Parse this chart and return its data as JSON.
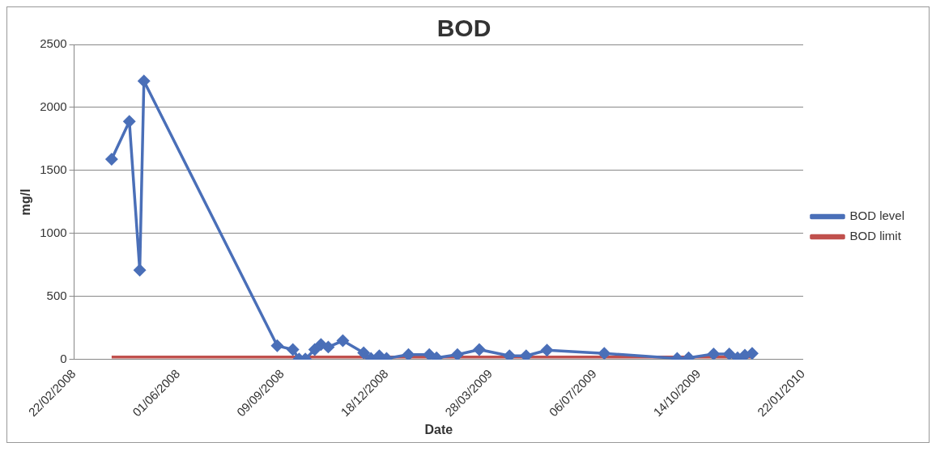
{
  "chart_data": {
    "type": "line",
    "title": "BOD",
    "xlabel": "Date",
    "ylabel": "mg/l",
    "xlim": [
      "2008-02-22",
      "2010-01-22"
    ],
    "xticks": [
      {
        "value": "2008-02-22",
        "label": "22/02/2008"
      },
      {
        "value": "2008-06-01",
        "label": "01/06/2008"
      },
      {
        "value": "2008-09-09",
        "label": "09/09/2008"
      },
      {
        "value": "2008-12-18",
        "label": "18/12/2008"
      },
      {
        "value": "2009-03-28",
        "label": "28/03/2009"
      },
      {
        "value": "2009-07-06",
        "label": "06/07/2009"
      },
      {
        "value": "2009-10-14",
        "label": "14/10/2009"
      },
      {
        "value": "2010-01-22",
        "label": "22/01/2010"
      }
    ],
    "ylim": [
      0,
      2500
    ],
    "yticks": [
      0,
      500,
      1000,
      1500,
      2000,
      2500
    ],
    "grid": "y",
    "legend": "right",
    "series": [
      {
        "name": "BOD level",
        "color": "#4a6fb8",
        "marker": "diamond",
        "x": [
          "2008-03-29",
          "2008-04-15",
          "2008-04-25",
          "2008-04-29",
          "2008-09-04",
          "2008-09-19",
          "2008-09-25",
          "2008-10-01",
          "2008-10-10",
          "2008-10-16",
          "2008-10-23",
          "2008-11-06",
          "2008-11-26",
          "2008-12-03",
          "2008-12-11",
          "2008-12-18",
          "2009-01-08",
          "2009-01-28",
          "2009-02-04",
          "2009-02-24",
          "2009-03-17",
          "2009-04-15",
          "2009-05-01",
          "2009-05-21",
          "2009-07-15",
          "2009-09-23",
          "2009-10-04",
          "2009-10-28",
          "2009-11-12",
          "2009-11-20",
          "2009-11-27",
          "2009-12-04"
        ],
        "values": [
          1590,
          1890,
          710,
          2210,
          110,
          80,
          5,
          5,
          80,
          120,
          100,
          150,
          55,
          10,
          30,
          10,
          40,
          40,
          15,
          40,
          80,
          30,
          30,
          75,
          50,
          10,
          15,
          45,
          45,
          15,
          35,
          50
        ]
      },
      {
        "name": "BOD limit",
        "color": "#c0504d",
        "marker": "none",
        "x": [
          "2008-03-29",
          "2009-12-04"
        ],
        "values": [
          20,
          20
        ]
      }
    ]
  }
}
